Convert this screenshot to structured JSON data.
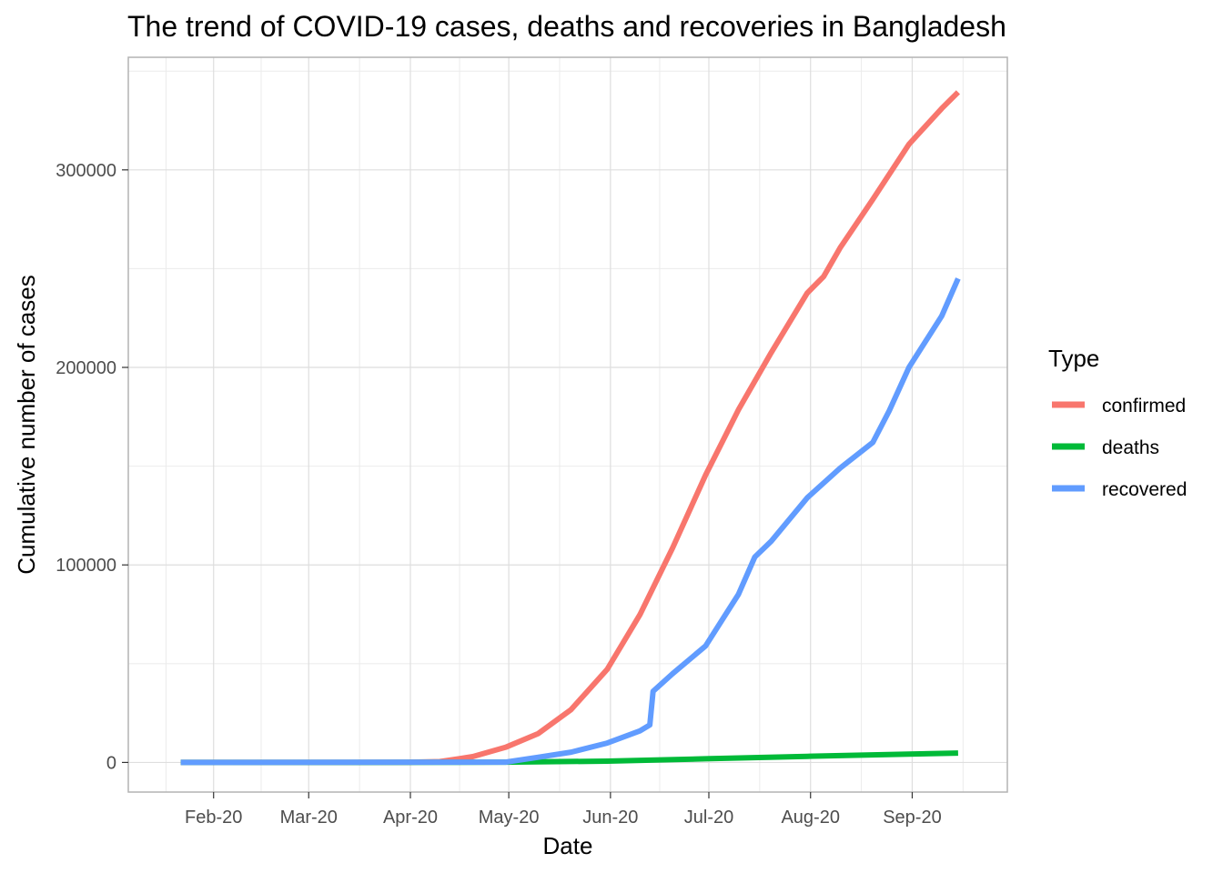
{
  "chart_data": {
    "type": "line",
    "title": "The trend of COVID-19 cases, deaths and recoveries in Bangladesh",
    "xlabel": "Date",
    "ylabel": "Cumulative number of cases",
    "x_ticks": [
      {
        "date": "2020-02-01",
        "label": "Feb-20"
      },
      {
        "date": "2020-03-01",
        "label": "Mar-20"
      },
      {
        "date": "2020-04-01",
        "label": "Apr-20"
      },
      {
        "date": "2020-05-01",
        "label": "May-20"
      },
      {
        "date": "2020-06-01",
        "label": "Jun-20"
      },
      {
        "date": "2020-07-01",
        "label": "Jul-20"
      },
      {
        "date": "2020-08-01",
        "label": "Aug-20"
      },
      {
        "date": "2020-09-01",
        "label": "Sep-20"
      }
    ],
    "y_ticks": [
      {
        "value": 0,
        "label": "0"
      },
      {
        "value": 100000,
        "label": "100000"
      },
      {
        "value": 200000,
        "label": "200000"
      },
      {
        "value": 300000,
        "label": "300000"
      }
    ],
    "xlim": [
      "2020-01-06",
      "2020-09-30"
    ],
    "ylim": [
      -15000,
      357000
    ],
    "grid": true,
    "legend": {
      "title": "Type",
      "position": "right",
      "items": [
        {
          "label": "confirmed",
          "color": "#F8766D"
        },
        {
          "label": "deaths",
          "color": "#00BA38"
        },
        {
          "label": "recovered",
          "color": "#619CFF"
        }
      ]
    },
    "series": [
      {
        "name": "confirmed",
        "color": "#F8766D",
        "points": [
          [
            "2020-01-22",
            0
          ],
          [
            "2020-03-08",
            3
          ],
          [
            "2020-03-31",
            51
          ],
          [
            "2020-04-10",
            424
          ],
          [
            "2020-04-20",
            2948
          ],
          [
            "2020-04-30",
            7667
          ],
          [
            "2020-05-10",
            14657
          ],
          [
            "2020-05-20",
            26738
          ],
          [
            "2020-05-31",
            47153
          ],
          [
            "2020-06-10",
            74865
          ],
          [
            "2020-06-20",
            108775
          ],
          [
            "2020-06-30",
            145483
          ],
          [
            "2020-07-10",
            178443
          ],
          [
            "2020-07-20",
            207453
          ],
          [
            "2020-07-31",
            237661
          ],
          [
            "2020-08-05",
            246000
          ],
          [
            "2020-08-10",
            260507
          ],
          [
            "2020-08-20",
            285091
          ],
          [
            "2020-08-31",
            312996
          ],
          [
            "2020-09-10",
            331078
          ],
          [
            "2020-09-15",
            339332
          ]
        ]
      },
      {
        "name": "deaths",
        "color": "#00BA38",
        "points": [
          [
            "2020-01-22",
            0
          ],
          [
            "2020-03-18",
            1
          ],
          [
            "2020-04-30",
            163
          ],
          [
            "2020-05-31",
            650
          ],
          [
            "2020-06-30",
            1847
          ],
          [
            "2020-07-31",
            3111
          ],
          [
            "2020-08-31",
            4248
          ],
          [
            "2020-09-15",
            4759
          ]
        ]
      },
      {
        "name": "recovered",
        "color": "#619CFF",
        "points": [
          [
            "2020-01-22",
            0
          ],
          [
            "2020-04-30",
            160
          ],
          [
            "2020-05-10",
            2650
          ],
          [
            "2020-05-20",
            5200
          ],
          [
            "2020-05-31",
            9800
          ],
          [
            "2020-06-10",
            16000
          ],
          [
            "2020-06-13",
            19000
          ],
          [
            "2020-06-14",
            36000
          ],
          [
            "2020-06-20",
            45000
          ],
          [
            "2020-06-30",
            59000
          ],
          [
            "2020-07-05",
            72000
          ],
          [
            "2020-07-10",
            85000
          ],
          [
            "2020-07-15",
            104000
          ],
          [
            "2020-07-20",
            112000
          ],
          [
            "2020-07-31",
            134000
          ],
          [
            "2020-08-10",
            149000
          ],
          [
            "2020-08-20",
            162000
          ],
          [
            "2020-08-25",
            178000
          ],
          [
            "2020-08-31",
            200000
          ],
          [
            "2020-09-10",
            226000
          ],
          [
            "2020-09-15",
            245000
          ]
        ]
      }
    ]
  }
}
